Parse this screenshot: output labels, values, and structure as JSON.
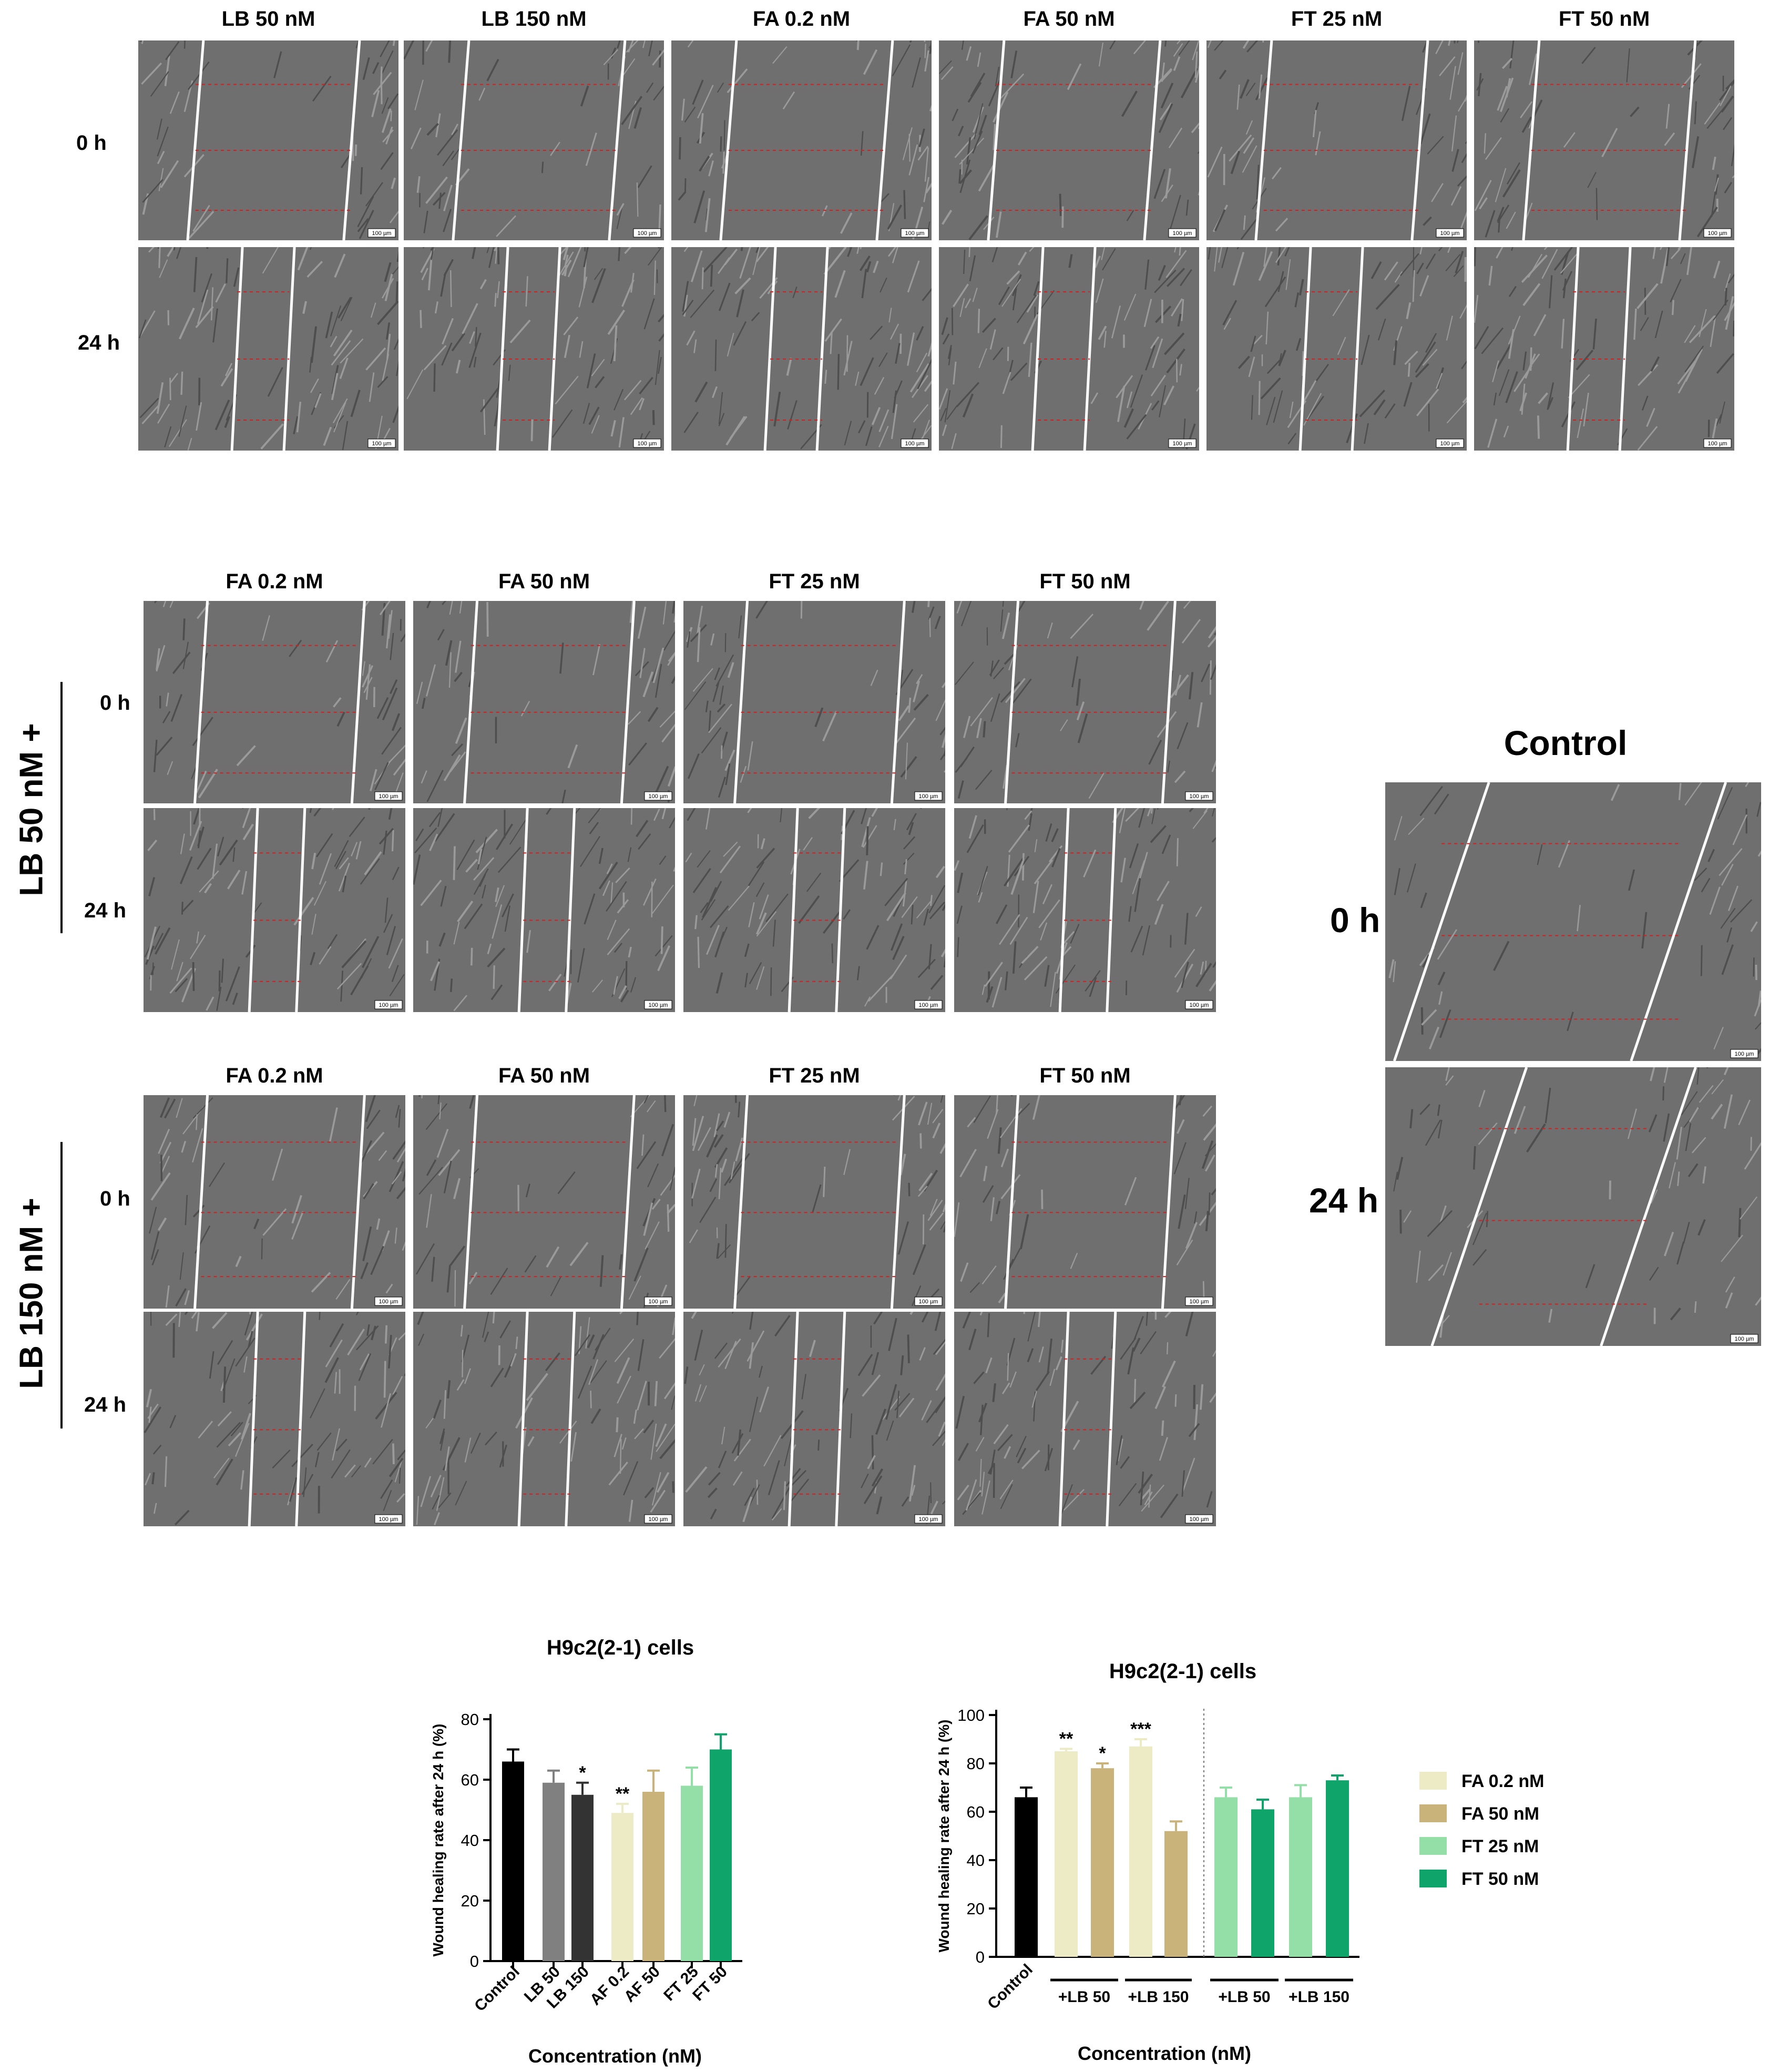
{
  "panel_a": {
    "columns": [
      "LB 50 nM",
      "LB 150 nM",
      "FA 0.2 nM",
      "FA 50 nM",
      "FT 25 nM",
      "FT 50 nM"
    ],
    "rows": [
      "0 h",
      "24 h"
    ],
    "scale_bar": "100 µm"
  },
  "panel_b": {
    "columns": [
      "FA 0.2 nM",
      "FA 50 nM",
      "FT 25 nM",
      "FT 50 nM"
    ],
    "rows": [
      "0 h",
      "24 h"
    ],
    "group_label": "LB 50 nM +",
    "scale_bar": "100 µm"
  },
  "panel_c": {
    "columns": [
      "FA 0.2 nM",
      "FA 50 nM",
      "FT 25 nM",
      "FT 50 nM"
    ],
    "rows": [
      "0 h",
      "24 h"
    ],
    "group_label": "LB 150 nM +",
    "scale_bar": "100 µm"
  },
  "panel_control": {
    "title": "Control",
    "rows": [
      "0 h",
      "24 h"
    ],
    "scale_bar": "100 µm"
  },
  "colors": {
    "control": "#000000",
    "lb50": "#808080",
    "lb150": "#333333",
    "fa02": "#ecebc6",
    "fa50": "#c9b37a",
    "ft25": "#94dfa8",
    "ft50": "#0fa46a",
    "micrograph": "#6f6f6f"
  },
  "chart_data": [
    {
      "type": "bar",
      "title": "H9c2(2-1) cells",
      "xlabel": "Concentration (nM)",
      "ylabel": "Wound healing rate after 24 h (%)",
      "ylim": [
        0,
        80
      ],
      "yticks": [
        "0",
        "20",
        "40",
        "60",
        "80"
      ],
      "categories": [
        "Control",
        "LB 50",
        "LB 150",
        "AF 0.2",
        "AF 50",
        "FT 25",
        "FT 50"
      ],
      "values": [
        66,
        59,
        55,
        49,
        56,
        58,
        70
      ],
      "errors": [
        4,
        4,
        4,
        3,
        7,
        6,
        5
      ],
      "significance": [
        "",
        "",
        "*",
        "**",
        "",
        "",
        ""
      ],
      "colors": [
        "#000000",
        "#808080",
        "#333333",
        "#ecebc6",
        "#c9b37a",
        "#94dfa8",
        "#0fa46a"
      ]
    },
    {
      "type": "bar",
      "title": "H9c2(2-1) cells",
      "xlabel": "Concentration (nM)",
      "ylabel": "Wound healing rate after 24 h (%)",
      "ylim": [
        0,
        100
      ],
      "yticks": [
        "0",
        "20",
        "40",
        "60",
        "80",
        "100"
      ],
      "categories": [
        "Control",
        "",
        "",
        "",
        "",
        "",
        "",
        "",
        ""
      ],
      "group_labels": [
        "+LB 50",
        "+LB 150",
        "+LB 50",
        "+LB 150"
      ],
      "values": [
        66,
        85,
        78,
        87,
        52,
        66,
        61,
        66,
        73
      ],
      "errors": [
        4,
        1,
        2,
        3,
        4,
        4,
        4,
        5,
        2
      ],
      "significance": [
        "",
        "**",
        "*",
        "***",
        "",
        "",
        "",
        "",
        ""
      ],
      "colors": [
        "#000000",
        "#ecebc6",
        "#c9b37a",
        "#ecebc6",
        "#c9b37a",
        "#94dfa8",
        "#0fa46a",
        "#94dfa8",
        "#0fa46a"
      ],
      "legend": [
        {
          "name": "FA 0.2 nM",
          "color": "#ecebc6"
        },
        {
          "name": "FA 50 nM",
          "color": "#c9b37a"
        },
        {
          "name": "FT 25 nM",
          "color": "#94dfa8"
        },
        {
          "name": "FT 50 nM",
          "color": "#0fa46a"
        }
      ],
      "legend_position": "right"
    }
  ]
}
